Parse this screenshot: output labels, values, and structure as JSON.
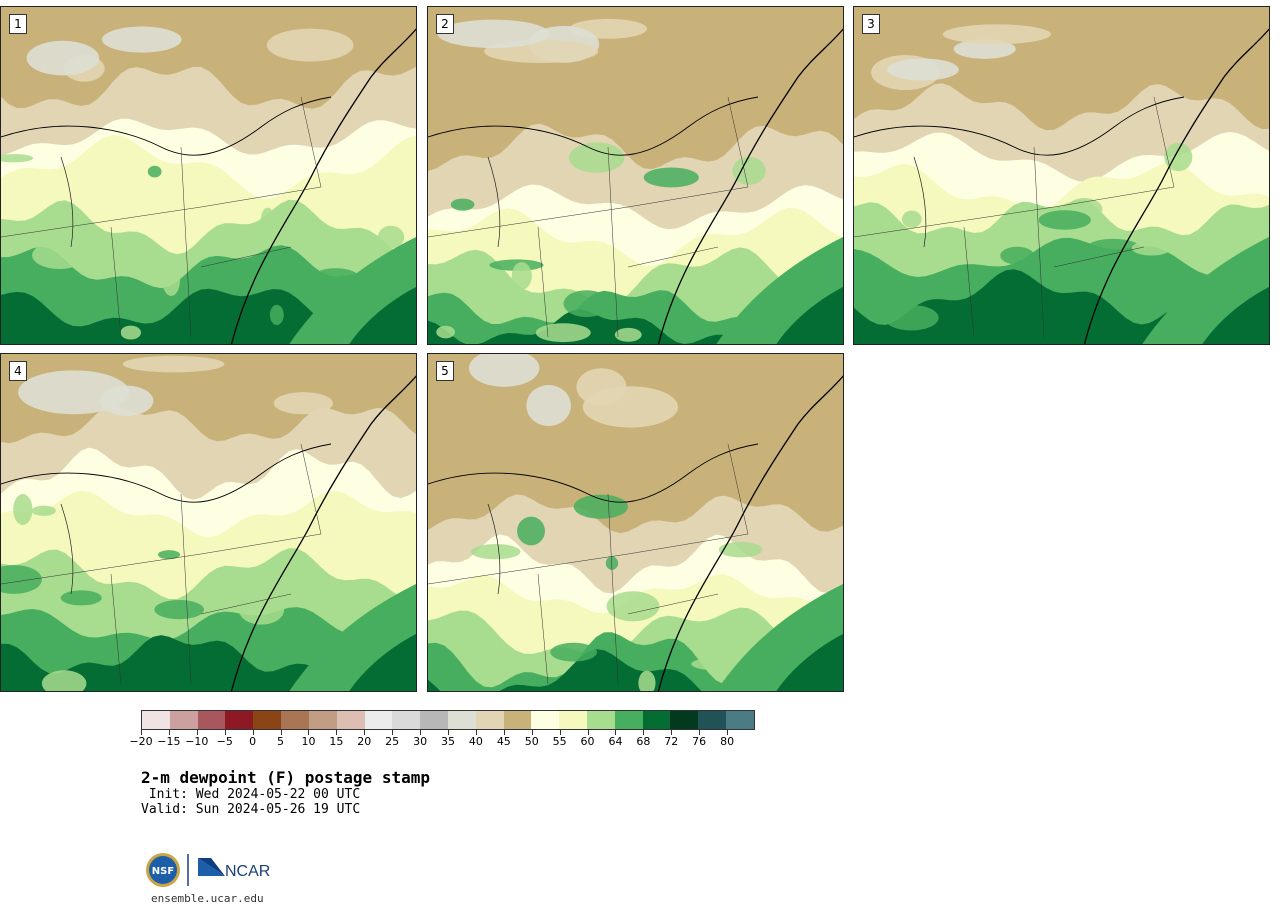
{
  "panels": [
    {
      "label": "1",
      "variant": 1
    },
    {
      "label": "2",
      "variant": 2
    },
    {
      "label": "3",
      "variant": 3
    },
    {
      "label": "4",
      "variant": 4
    },
    {
      "label": "5",
      "variant": 5
    }
  ],
  "colorbar": {
    "colors": [
      "#efe3e3",
      "#cda0a0",
      "#a8575c",
      "#8c1923",
      "#8b4514",
      "#a87655",
      "#c29c83",
      "#dcbfb2",
      "#ececec",
      "#dadada",
      "#b7b7b7",
      "#dedfd4",
      "#e1d5b3",
      "#c9b27a",
      "#fefee3",
      "#f6f9be",
      "#a8dc8e",
      "#46ae5e",
      "#046d34",
      "#033a1f",
      "#1f5357",
      "#4c7c83"
    ],
    "tick_labels": [
      "−20",
      "−15",
      "−10",
      "−5",
      "0",
      "5",
      "10",
      "15",
      "20",
      "25",
      "30",
      "35",
      "40",
      "45",
      "50",
      "55",
      "60",
      "64",
      "68",
      "72",
      "76",
      "80"
    ]
  },
  "title": "2-m dewpoint (F) postage stamp",
  "init_text": " Init: Wed 2024-05-22 00 UTC",
  "valid_text": "Valid: Sun 2024-05-26 19 UTC",
  "logos": {
    "nsf": "NSF",
    "ncar": "NCAR"
  },
  "site": "ensemble.ucar.edu"
}
